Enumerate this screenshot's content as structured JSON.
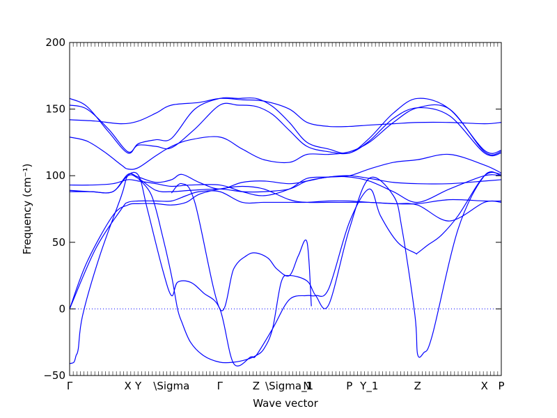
{
  "chart_data": {
    "type": "line",
    "title": "",
    "xlabel": "Wave vector",
    "ylabel": "Frequency (cm⁻¹)",
    "ylim": [
      -50,
      200
    ],
    "yticks": [
      -50,
      0,
      50,
      100,
      150,
      200
    ],
    "ytick_labels": [
      "−50",
      "0",
      "50",
      "100",
      "150",
      "200"
    ],
    "reference_line": {
      "y": 0,
      "style": "dotted"
    },
    "line_color": "#0000ff",
    "x_segments": [
      {
        "from": "Γ",
        "to": "X"
      },
      {
        "from": "Y",
        "to": "\\Sigma"
      },
      {
        "from": "\\Sigma",
        "to": "Γ"
      },
      {
        "from": "Γ",
        "to": "Z"
      },
      {
        "from": "Z",
        "to": "\\Sigma_1"
      },
      {
        "from": "N",
        "to": "Γ"
      },
      {
        "from": "Γ",
        "to": "P"
      },
      {
        "from": "P",
        "to": "Y_1"
      },
      {
        "from": "Y_1",
        "to": "Z"
      },
      {
        "from": "Z",
        "to": "X"
      },
      {
        "from": "X",
        "to": "P"
      }
    ],
    "xticks": [
      {
        "x": 0.0,
        "label": "Γ"
      },
      {
        "x": 0.135,
        "label": "X"
      },
      {
        "x": 0.159,
        "label": "Y"
      },
      {
        "x": 0.236,
        "label": "\\Sigma"
      },
      {
        "x": 0.348,
        "label": "Γ"
      },
      {
        "x": 0.432,
        "label": "Z"
      },
      {
        "x": 0.509,
        "label": "\\Sigma_1"
      },
      {
        "x": 0.55,
        "label": "N"
      },
      {
        "x": 0.555,
        "label": "1"
      },
      {
        "x": 0.648,
        "label": "P"
      },
      {
        "x": 0.694,
        "label": "Y_1"
      },
      {
        "x": 0.806,
        "label": "Z"
      },
      {
        "x": 0.961,
        "label": "X"
      },
      {
        "x": 1.0,
        "label": "P"
      }
    ],
    "series": [
      {
        "x": [
          0,
          0.04,
          0.09,
          0.135,
          0.159,
          0.2,
          0.236,
          0.29,
          0.348,
          0.39,
          0.432,
          0.47,
          0.509,
          0.55,
          0.6,
          0.648,
          0.694,
          0.75,
          0.806,
          0.88,
          0.961,
          1.0
        ],
        "y": [
          158,
          152,
          133,
          117,
          124,
          127,
          128,
          150,
          158,
          158,
          158,
          152,
          140,
          125,
          120,
          117,
          128,
          147,
          158,
          150,
          119,
          119
        ]
      },
      {
        "x": [
          0,
          0.04,
          0.09,
          0.135,
          0.159,
          0.2,
          0.236,
          0.29,
          0.348,
          0.39,
          0.432,
          0.47,
          0.509,
          0.55,
          0.6,
          0.648,
          0.694,
          0.75,
          0.806,
          0.88,
          0.961,
          1.0
        ],
        "y": [
          153,
          150,
          135,
          118,
          123,
          122,
          121,
          135,
          153,
          153,
          152,
          146,
          134,
          122,
          118,
          117,
          126,
          143,
          151,
          145,
          117,
          117
        ]
      },
      {
        "x": [
          0,
          0.06,
          0.12,
          0.159,
          0.2,
          0.236,
          0.3,
          0.348,
          0.4,
          0.45,
          0.509,
          0.55,
          0.6,
          0.648,
          0.694,
          0.75,
          0.806,
          0.88,
          0.961,
          1.0
        ],
        "y": [
          142,
          141,
          139,
          141,
          147,
          153,
          155,
          158,
          157,
          156,
          150,
          140,
          137,
          137,
          138,
          139,
          140,
          140,
          139,
          140
        ]
      },
      {
        "x": [
          0,
          0.04,
          0.08,
          0.12,
          0.135,
          0.159,
          0.2,
          0.236,
          0.28,
          0.348,
          0.4,
          0.45,
          0.509,
          0.55,
          0.6,
          0.648,
          0.694,
          0.75,
          0.806,
          0.88,
          0.961,
          1.0
        ],
        "y": [
          129,
          126,
          118,
          108,
          105,
          106,
          115,
          122,
          127,
          129,
          120,
          112,
          110,
          116,
          116,
          118,
          125,
          140,
          151,
          150,
          118,
          118
        ]
      },
      {
        "x": [
          0,
          0.05,
          0.1,
          0.135,
          0.159,
          0.2,
          0.236,
          0.28,
          0.348,
          0.4,
          0.45,
          0.509,
          0.55,
          0.6,
          0.648,
          0.694,
          0.75,
          0.806,
          0.88,
          0.961,
          1.0
        ],
        "y": [
          93,
          93,
          94,
          97,
          96,
          94,
          92,
          93,
          93,
          88,
          85,
          90,
          98,
          99,
          100,
          105,
          110,
          112,
          116,
          108,
          102
        ]
      },
      {
        "x": [
          0,
          0.05,
          0.1,
          0.135,
          0.159,
          0.2,
          0.236,
          0.28,
          0.348,
          0.4,
          0.45,
          0.509,
          0.55,
          0.6,
          0.648,
          0.694,
          0.75,
          0.806,
          0.88,
          0.961,
          1.0
        ],
        "y": [
          89,
          88,
          88,
          100,
          98,
          89,
          88,
          89,
          90,
          88,
          88,
          90,
          96,
          99,
          100,
          98,
          95,
          94,
          94,
          96,
          97
        ]
      },
      {
        "x": [
          0,
          0.05,
          0.1,
          0.135,
          0.159,
          0.2,
          0.236,
          0.26,
          0.3,
          0.348,
          0.4,
          0.45,
          0.509,
          0.55,
          0.6,
          0.648,
          0.694,
          0.75,
          0.806,
          0.88,
          0.961,
          1.0
        ],
        "y": [
          88,
          88,
          88,
          101,
          99,
          95,
          97,
          101,
          95,
          90,
          95,
          96,
          94,
          96,
          99,
          99,
          96,
          88,
          80,
          90,
          100,
          100
        ]
      },
      {
        "x": [
          0,
          0.06,
          0.12,
          0.135,
          0.159,
          0.2,
          0.236,
          0.27,
          0.3,
          0.348,
          0.4,
          0.45,
          0.509,
          0.55,
          0.6,
          0.648,
          0.694,
          0.75,
          0.806,
          0.88,
          0.961,
          1.0
        ],
        "y": [
          0,
          45,
          75,
          80,
          81,
          81,
          81,
          85,
          88,
          88,
          80,
          80,
          80,
          80,
          81,
          81,
          80,
          79,
          79,
          82,
          81,
          81
        ]
      },
      {
        "x": [
          0,
          0.04,
          0.1,
          0.135,
          0.159,
          0.2,
          0.236,
          0.27,
          0.3,
          0.348,
          0.4,
          0.45,
          0.509,
          0.55,
          0.6,
          0.648,
          0.694,
          0.75,
          0.806,
          0.88,
          0.961,
          1.0
        ],
        "y": [
          0,
          35,
          70,
          78,
          79,
          79,
          78,
          80,
          86,
          90,
          92,
          90,
          82,
          80,
          80,
          80,
          80,
          79,
          78,
          66,
          80,
          80
        ]
      },
      {
        "x": [
          0,
          0.01,
          0.015,
          0.02,
          0.03,
          0.07,
          0.12,
          0.135,
          0.16,
          0.18,
          0.215,
          0.236,
          0.25,
          0.28,
          0.31,
          0.348,
          0.38,
          0.42,
          0.432,
          0.47,
          0.509,
          0.55,
          0.57,
          0.6,
          0.648,
          0.694,
          0.72,
          0.76,
          0.8,
          0.806,
          0.83,
          0.86,
          0.9,
          0.961,
          1.0
        ],
        "y": [
          -41,
          -40,
          -35,
          -30,
          -5,
          40,
          85,
          100,
          100,
          75,
          30,
          10,
          20,
          20,
          12,
          0,
          -41,
          -36,
          -35,
          -15,
          7,
          10,
          10,
          15,
          65,
          90,
          70,
          50,
          42,
          42,
          48,
          55,
          70,
          100,
          101
        ]
      },
      {
        "x": [
          0.159,
          0.19,
          0.215,
          0.236,
          0.25,
          0.26,
          0.28,
          0.31,
          0.348,
          0.38,
          0.41,
          0.432,
          0.45,
          0.47,
          0.49,
          0.509,
          0.55,
          0.57,
          0.6,
          0.648,
          0.694,
          0.75,
          0.77,
          0.8,
          0.806,
          0.82,
          0.84,
          0.9,
          0.961,
          1.0
        ],
        "y": [
          98,
          85,
          55,
          25,
          0,
          -10,
          -25,
          -35,
          -40,
          -40,
          -38,
          -35,
          -30,
          -15,
          20,
          25,
          21,
          10,
          3,
          60,
          98,
          85,
          60,
          -5,
          -34,
          -33,
          -20,
          60,
          100,
          100
        ]
      },
      {
        "x": [
          0.236,
          0.26,
          0.29,
          0.348,
          0.38,
          0.41,
          0.432,
          0.46,
          0.48,
          0.509,
          0.53,
          0.55,
          0.56
        ],
        "y": [
          87,
          94,
          80,
          0,
          30,
          40,
          42,
          38,
          30,
          25,
          40,
          50,
          2
        ]
      }
    ]
  }
}
